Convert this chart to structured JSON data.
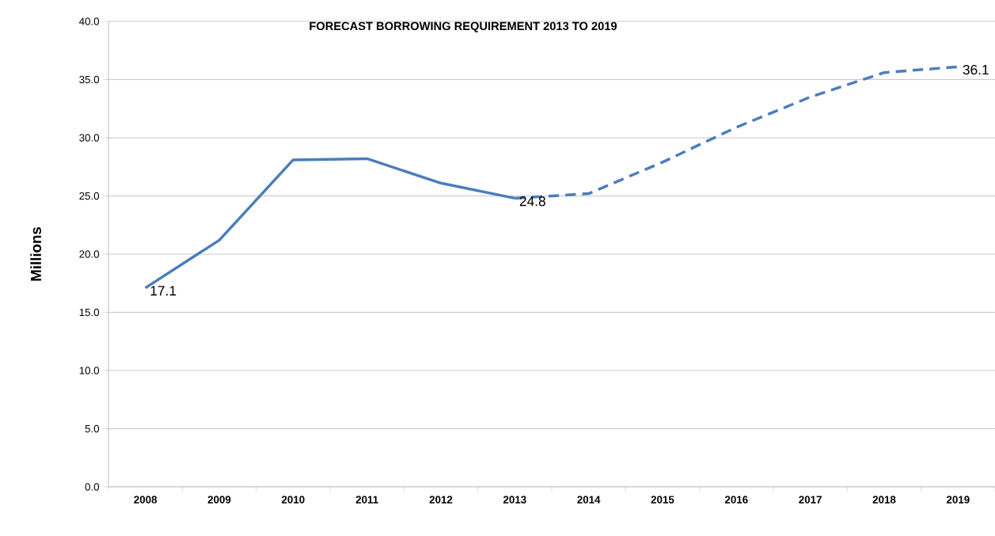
{
  "chart_data": {
    "type": "line",
    "title": "FORECAST BORROWING REQUIREMENT 2013 TO 2019",
    "ylabel": "Millions",
    "categories": [
      "2008",
      "2009",
      "2010",
      "2011",
      "2012",
      "2013",
      "2014",
      "2015",
      "2016",
      "2017",
      "2018",
      "2019"
    ],
    "series": [
      {
        "color": "#4a7ebb",
        "line_style": "solid",
        "values": [
          17.1,
          21.2,
          28.1,
          28.2,
          26.1,
          24.8,
          null,
          null,
          null,
          null,
          null,
          null
        ],
        "value_labels": [
          "17.1",
          null,
          null,
          null,
          null,
          "24.8",
          null,
          null,
          null,
          null,
          null,
          null
        ]
      },
      {
        "color": "#4a7ebb",
        "line_style": "dashed",
        "values": [
          null,
          null,
          null,
          null,
          null,
          24.8,
          25.2,
          27.9,
          30.9,
          33.5,
          35.6,
          36.1
        ],
        "value_labels": [
          null,
          null,
          null,
          null,
          null,
          null,
          null,
          null,
          null,
          null,
          null,
          "36.1"
        ]
      }
    ],
    "ylim": [
      0,
      40
    ],
    "yticks": [
      {
        "value": 0,
        "label": "0.0"
      },
      {
        "value": 5,
        "label": "5.0"
      },
      {
        "value": 10,
        "label": "10.0"
      },
      {
        "value": 15,
        "label": "15.0"
      },
      {
        "value": 20,
        "label": "20.0"
      },
      {
        "value": 25,
        "label": "25.0"
      },
      {
        "value": 30,
        "label": "30.0"
      },
      {
        "value": 35,
        "label": "35.0"
      },
      {
        "value": 40,
        "label": "40.0"
      }
    ],
    "grid": "y"
  }
}
